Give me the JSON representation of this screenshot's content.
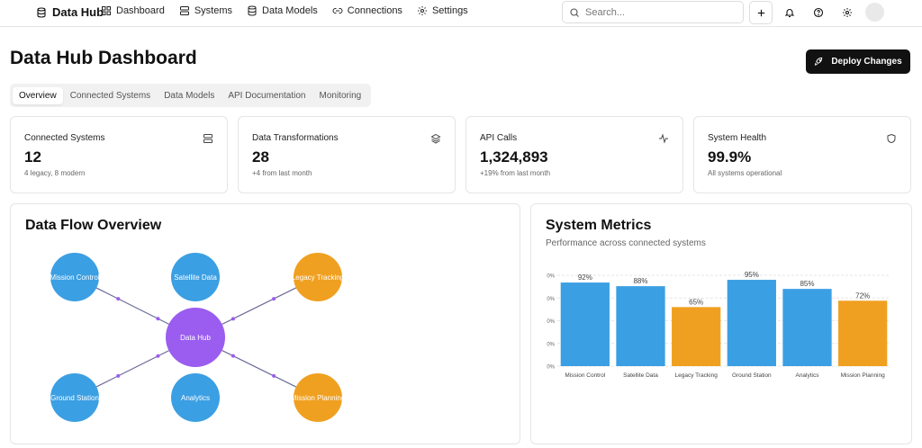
{
  "nav": {
    "brand": "Data Hub",
    "links": [
      {
        "label": "Dashboard",
        "icon": "grid-icon"
      },
      {
        "label": "Systems",
        "icon": "server-icon"
      },
      {
        "label": "Data Models",
        "icon": "database-icon"
      },
      {
        "label": "Connections",
        "icon": "link-icon"
      },
      {
        "label": "Settings",
        "icon": "gear-icon"
      }
    ],
    "search_placeholder": "Search..."
  },
  "header": {
    "title": "Data Hub Dashboard",
    "deploy_label": "Deploy Changes"
  },
  "tabs": [
    "Overview",
    "Connected Systems",
    "Data Models",
    "API Documentation",
    "Monitoring"
  ],
  "active_tab": "Overview",
  "stats": [
    {
      "label": "Connected Systems",
      "value": "12",
      "sub": "4 legacy, 8 modern",
      "icon": "server-icon"
    },
    {
      "label": "Data Transformations",
      "value": "28",
      "sub": "+4 from last month",
      "icon": "layers-icon"
    },
    {
      "label": "API Calls",
      "value": "1,324,893",
      "sub": "+19% from last month",
      "icon": "activity-icon"
    },
    {
      "label": "System Health",
      "value": "99.9%",
      "sub": "All systems operational",
      "icon": "shield-icon"
    }
  ],
  "data_flow": {
    "title": "Data Flow Overview",
    "hub": "Data Hub",
    "nodes": [
      {
        "label": "Mission Control",
        "color": "#3b9fe3"
      },
      {
        "label": "Satellite Data",
        "color": "#3b9fe3"
      },
      {
        "label": "Legacy Tracking",
        "color": "#f0a020"
      },
      {
        "label": "Ground Station",
        "color": "#3b9fe3"
      },
      {
        "label": "Analytics",
        "color": "#3b9fe3"
      },
      {
        "label": "Mission Planning",
        "color": "#f0a020"
      }
    ],
    "hub_color": "#9b5cf0"
  },
  "metrics": {
    "title": "System Metrics",
    "subtitle": "Performance across connected systems"
  },
  "chart_data": {
    "type": "bar",
    "categories": [
      "Mission Control",
      "Satellite Data",
      "Legacy Tracking",
      "Ground Station",
      "Analytics",
      "Mission Planning"
    ],
    "values": [
      92,
      88,
      65,
      95,
      85,
      72
    ],
    "data_labels": [
      "92%",
      "88%",
      "65%",
      "95%",
      "85%",
      "72%"
    ],
    "colors": [
      "#3b9fe3",
      "#3b9fe3",
      "#f0a020",
      "#3b9fe3",
      "#3b9fe3",
      "#f0a020"
    ],
    "y_tick_labels": [
      "0%",
      "0%",
      "0%",
      "0%",
      "0%"
    ],
    "ylim": [
      0,
      100
    ],
    "grid": true
  }
}
